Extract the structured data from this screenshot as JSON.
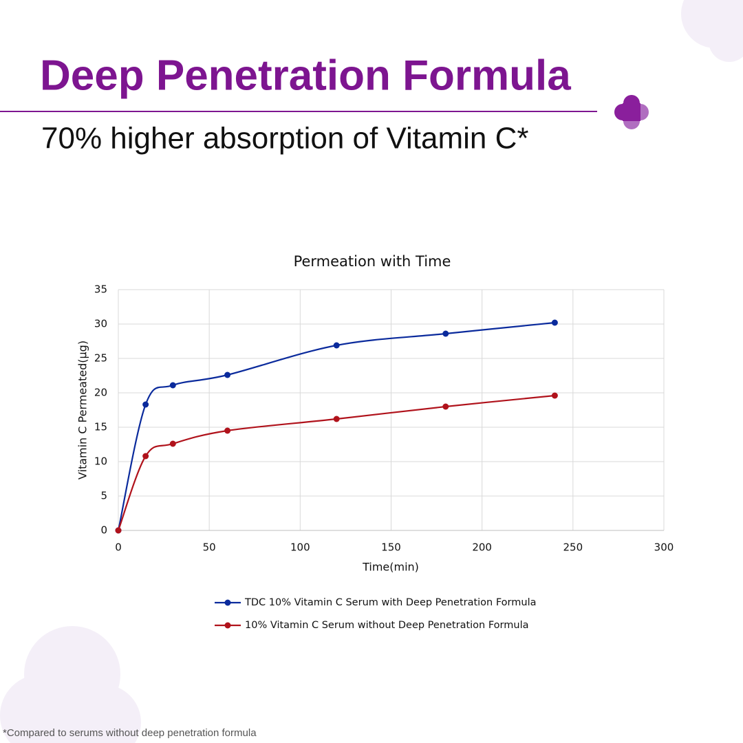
{
  "header": {
    "title": "Deep Penetration Formula",
    "subtitle": "70% higher absorption of Vitamin C*"
  },
  "footnote": "*Compared to serums without deep penetration formula",
  "chart_data": {
    "type": "line",
    "title": "Permeation with Time",
    "x_label": "Time(min)",
    "y_label": "Vitamin C Permeated(µg)",
    "x": [
      0,
      15,
      30,
      60,
      120,
      180,
      240
    ],
    "series": [
      {
        "name": "TDC 10% Vitamin C Serum with Deep Penetration Formula",
        "color": "#0a2a9c",
        "values": [
          0,
          18.3,
          21.1,
          22.6,
          26.9,
          28.6,
          30.2
        ]
      },
      {
        "name": "10% Vitamin C Serum without Deep Penetration Formula",
        "color": "#b0121b",
        "values": [
          0,
          10.8,
          12.6,
          14.5,
          16.2,
          18.0,
          19.6
        ]
      }
    ],
    "xlim": [
      0,
      300
    ],
    "xticks": [
      0,
      50,
      100,
      150,
      200,
      250,
      300
    ],
    "ylim": [
      0,
      35
    ],
    "yticks": [
      0,
      5,
      10,
      15,
      20,
      25,
      30,
      35
    ],
    "grid": true,
    "smooth": true,
    "legend": "bottom"
  }
}
